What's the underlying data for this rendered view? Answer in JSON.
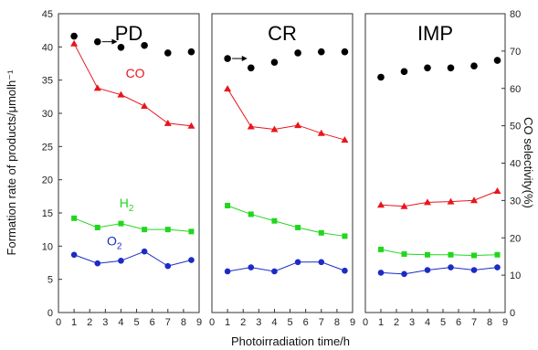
{
  "chart_data": {
    "type": "line",
    "xlabel": "Photoirradiation time/h",
    "ylabel_left": "Formation rate of products/μmolh⁻¹",
    "ylabel_right": "CO selectivity(%)",
    "ylim_left": [
      0,
      45
    ],
    "ylim_right": [
      0,
      80
    ],
    "xlim": [
      0,
      9
    ],
    "xticks": [
      0,
      1,
      2,
      3,
      4,
      5,
      6,
      7,
      8,
      9
    ],
    "yticks_left": [
      0,
      5,
      10,
      15,
      20,
      25,
      30,
      35,
      40,
      45
    ],
    "yticks_right": [
      0,
      10,
      20,
      30,
      40,
      50,
      60,
      70,
      80
    ],
    "labels": {
      "co": "CO",
      "h2": "H",
      "h2_sub": "2",
      "o2": "O",
      "o2_sub": "2"
    },
    "colors": {
      "co": "#e8161c",
      "h2": "#22d61e",
      "o2": "#1c2bc4",
      "selectivity": "#000000"
    },
    "panels": [
      {
        "title": "PD",
        "x": [
          1,
          2.5,
          4,
          5.5,
          7,
          8.5
        ],
        "series": [
          {
            "key": "co",
            "values": [
              40.5,
              33.8,
              32.8,
              31.1,
              28.5,
              28.1
            ]
          },
          {
            "key": "h2",
            "values": [
              14.2,
              12.8,
              13.4,
              12.5,
              12.5,
              12.2
            ]
          },
          {
            "key": "o2",
            "values": [
              8.7,
              7.4,
              7.8,
              9.2,
              7.0,
              7.9
            ]
          }
        ],
        "selectivity": [
          74,
          72.5,
          71,
          71.5,
          69.5,
          69.8
        ],
        "arrow_index": 1
      },
      {
        "title": "CR",
        "x": [
          1,
          2.5,
          4,
          5.5,
          7,
          8.5
        ],
        "series": [
          {
            "key": "co",
            "values": [
              33.7,
              28.0,
              27.6,
              28.2,
              27.0,
              26.0
            ]
          },
          {
            "key": "h2",
            "values": [
              16.1,
              14.8,
              13.8,
              12.8,
              12.0,
              11.5
            ]
          },
          {
            "key": "o2",
            "values": [
              6.2,
              6.8,
              6.2,
              7.6,
              7.6,
              6.3
            ]
          }
        ],
        "selectivity": [
          68,
          65.5,
          67,
          69.5,
          69.8,
          69.8
        ],
        "arrow_index": 0
      },
      {
        "title": "IMP",
        "x": [
          1,
          2.5,
          4,
          5.5,
          7,
          8.5
        ],
        "series": [
          {
            "key": "co",
            "values": [
              16.2,
              16.0,
              16.6,
              16.7,
              16.9,
              18.3
            ]
          },
          {
            "key": "h2",
            "values": [
              9.5,
              8.8,
              8.7,
              8.7,
              8.6,
              8.7
            ]
          },
          {
            "key": "o2",
            "values": [
              6.0,
              5.8,
              6.4,
              6.8,
              6.4,
              6.8
            ]
          }
        ],
        "selectivity": [
          63,
          64.5,
          65.5,
          65.5,
          66,
          67.5
        ],
        "arrow_index": -1
      }
    ]
  }
}
